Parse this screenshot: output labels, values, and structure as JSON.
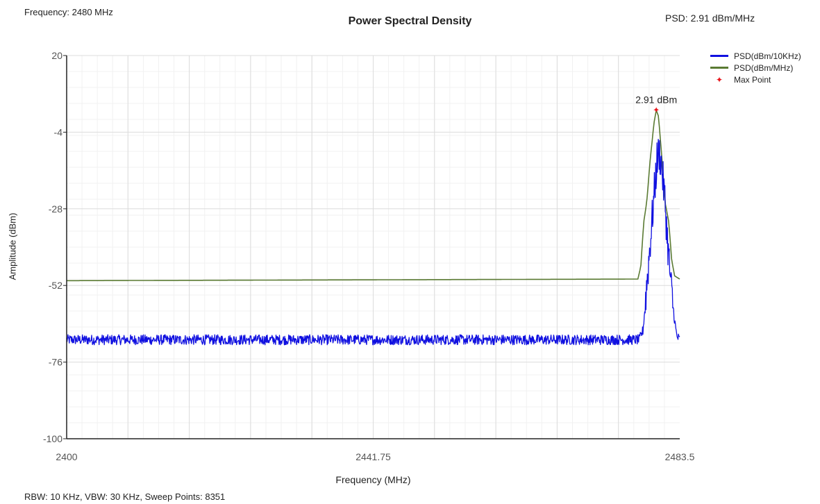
{
  "header": {
    "frequency_readout": "Frequency: 2480 MHz",
    "psd_readout": "PSD: 2.91 dBm/MHz"
  },
  "footer": {
    "settings": "RBW: 10 KHz,  VBW: 30 KHz,  Sweep Points: 8351"
  },
  "chart_data": {
    "type": "line",
    "title": "Power Spectral Density",
    "xlabel": "Frequency (MHz)",
    "ylabel": "Amplitude (dBm)",
    "xlim": [
      2400,
      2483.5
    ],
    "ylim": [
      -100,
      20
    ],
    "x_ticks": [
      "2400",
      "2441.75",
      "2483.5"
    ],
    "y_ticks": [
      "20",
      "-4",
      "-28",
      "-52",
      "-76",
      "-100"
    ],
    "grid": true,
    "legend_position": "top-right, outside plot",
    "series": [
      {
        "name": "PSD(dBm/10KHz)",
        "color": "#1010e0",
        "noise": 1.6,
        "points": [
          [
            2400,
            -69
          ],
          [
            2478.0,
            -69
          ],
          [
            2478.5,
            -66
          ],
          [
            2479.0,
            -52
          ],
          [
            2479.5,
            -38
          ],
          [
            2480.0,
            -24
          ],
          [
            2480.4,
            -13
          ],
          [
            2480.7,
            -10
          ],
          [
            2481.0,
            -14
          ],
          [
            2481.5,
            -26
          ],
          [
            2481.9,
            -40
          ],
          [
            2482.3,
            -52
          ],
          [
            2482.8,
            -63
          ],
          [
            2483.1,
            -68
          ],
          [
            2483.5,
            -69
          ]
        ]
      },
      {
        "name": "PSD(dBm/MHz)",
        "color": "#5a7a32",
        "noise": 0,
        "points": [
          [
            2400,
            -50.5
          ],
          [
            2477.8,
            -50
          ],
          [
            2478.2,
            -46
          ],
          [
            2478.6,
            -32
          ],
          [
            2479.0,
            -26
          ],
          [
            2479.5,
            -12
          ],
          [
            2480.0,
            -1
          ],
          [
            2480.3,
            2.91
          ],
          [
            2480.6,
            1
          ],
          [
            2481.0,
            -10
          ],
          [
            2481.5,
            -26
          ],
          [
            2482.0,
            -32
          ],
          [
            2482.4,
            -44
          ],
          [
            2482.8,
            -49
          ],
          [
            2483.5,
            -50
          ]
        ]
      }
    ],
    "max_point": {
      "name": "Max Point",
      "x": 2480.3,
      "y": 2.91,
      "label": "2.91 dBm",
      "color": "#e8161c"
    }
  }
}
